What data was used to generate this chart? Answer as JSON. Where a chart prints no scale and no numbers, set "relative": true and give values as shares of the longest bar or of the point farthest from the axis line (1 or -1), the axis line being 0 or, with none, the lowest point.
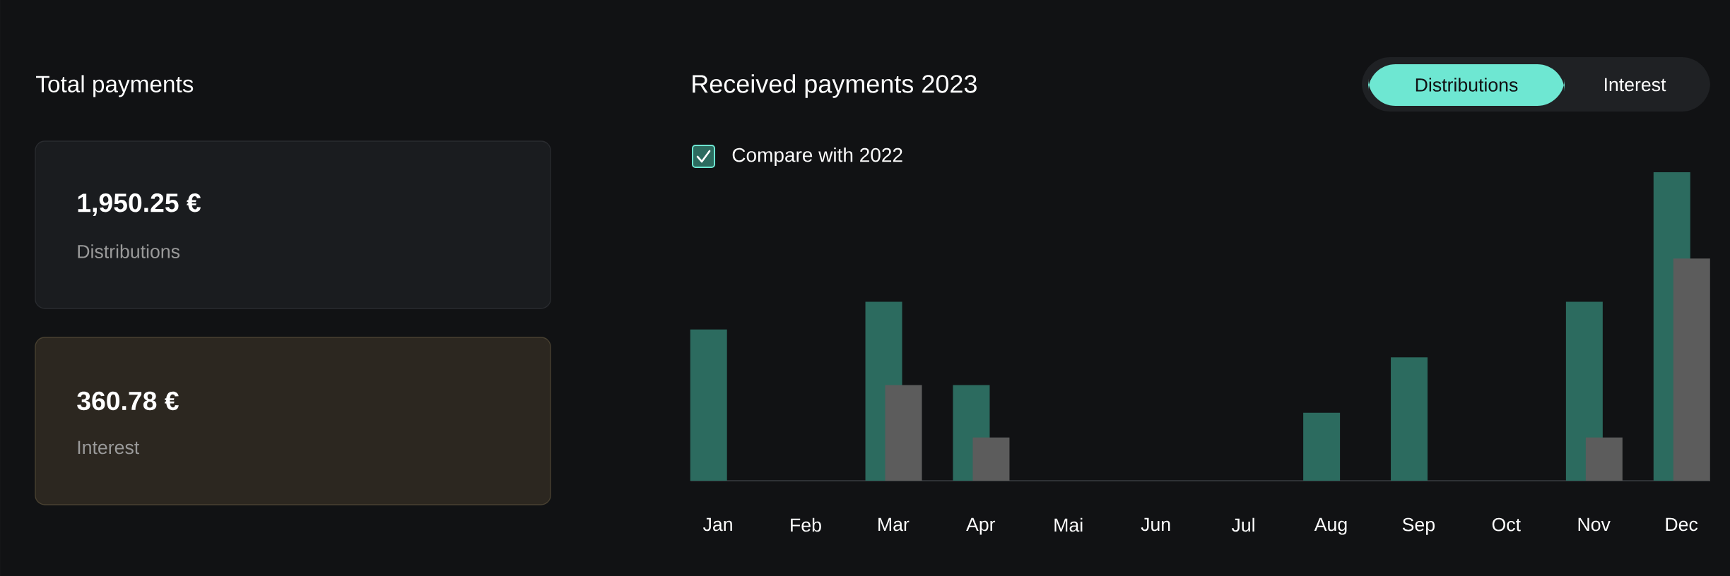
{
  "chart_data": [
    {
      "type": "other",
      "title": "Total payments",
      "annotations": [
        "1,950.25 €",
        "Distributions",
        "360.78 €",
        "Interest"
      ]
    },
    {
      "type": "bar",
      "title": "Received payments 2023",
      "categories": [
        "Jan",
        "Feb",
        "Mar",
        "Apr",
        "Mai",
        "Jun",
        "Jul",
        "Aug",
        "Sep",
        "Oct",
        "Nov",
        "Dec"
      ],
      "relative": true,
      "tick_labels": "x",
      "annotations": [
        "Distributions",
        "Interest",
        "Compare with 2022"
      ],
      "series": [
        {
          "color": "#2c6b5f",
          "values": [
            0.49,
            0,
            0.58,
            0.31,
            0,
            0,
            0,
            0.22,
            0.4,
            0,
            0.58,
            1
          ]
        },
        {
          "color": "#5c5c5c",
          "values": [
            0,
            0,
            0.31,
            0.14,
            0,
            0,
            0,
            0,
            0,
            0,
            0.14,
            0.72
          ]
        }
      ]
    }
  ]
}
